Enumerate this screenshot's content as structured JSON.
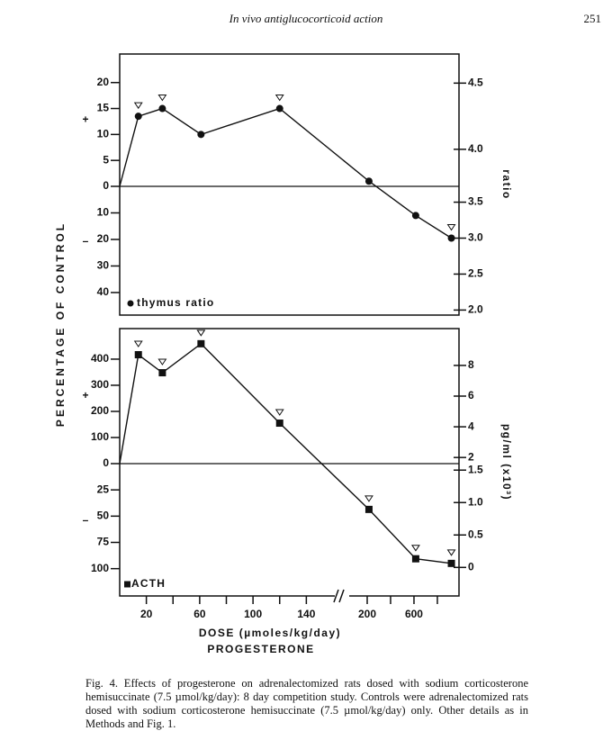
{
  "header": {
    "title": "In vivo antiglucocorticoid action",
    "page": "251"
  },
  "y_label": "PERCENTAGE OF CONTROL",
  "chart_data": [
    {
      "type": "line",
      "positive_label": "+",
      "negative_label": "–",
      "y2label": "ratio",
      "x": [
        0,
        14,
        32,
        61,
        120,
        215,
        615,
        920
      ],
      "xlim": [
        0,
        985
      ],
      "axis_break": [
        160,
        200
      ],
      "ylim": [
        -48.5,
        25.5
      ],
      "yticks": [
        20,
        15,
        10,
        5,
        0,
        {
          "value": -10,
          "label": "10"
        },
        {
          "value": -20,
          "label": "20"
        },
        {
          "value": -30,
          "label": "30"
        },
        {
          "value": -40,
          "label": "40"
        }
      ],
      "y2lim": [
        1.93,
        4.72
      ],
      "y2_break": 3.72,
      "y2ticks": [
        4.5,
        {
          "value": 4,
          "label": "4.0"
        },
        3.5,
        {
          "value": 3,
          "label": "3.0"
        },
        2.5,
        {
          "value": 2,
          "label": "2.0"
        }
      ],
      "series": [
        {
          "name": "thymus ratio",
          "marker": "circle",
          "color": "#111111",
          "values": [
            0,
            13.5,
            15,
            10,
            15,
            1,
            -11,
            -19.5
          ],
          "significant": [
            false,
            true,
            true,
            false,
            true,
            false,
            false,
            true
          ]
        }
      ]
    },
    {
      "type": "line",
      "positive_label": "+",
      "negative_label": "–",
      "y2label": "pg/ml (x10³)",
      "x": [
        0,
        14,
        32,
        61,
        120,
        215,
        615,
        920
      ],
      "xlim": [
        0,
        985
      ],
      "axis_break": [
        160,
        200
      ],
      "xticks": [
        20,
        60,
        100,
        140,
        200,
        600
      ],
      "xminor": [
        40,
        80,
        120,
        400,
        800
      ],
      "xlabel": "DOSE (µmoles/kg/day)",
      "xsublabel": "PROGESTERONE",
      "ylim": [
        -126,
        517
      ],
      "yticks": [
        400,
        300,
        200,
        100,
        0,
        {
          "value": -25,
          "label": "25"
        },
        {
          "value": -50,
          "label": "50"
        },
        {
          "value": -75,
          "label": "75"
        },
        {
          "value": -100,
          "label": "100"
        }
      ],
      "y2lim": [
        -0.44,
        10.4
      ],
      "y2_break": 1.6,
      "y2ticks": [
        8,
        6,
        4,
        2,
        1.5,
        {
          "value": 1,
          "label": "1.0"
        },
        0.5,
        0
      ],
      "series": [
        {
          "name": "ACTH",
          "marker": "square",
          "color": "#111111",
          "values": [
            0,
            417,
            348,
            459,
            155,
            -43.6,
            -90.6,
            -95
          ],
          "significant": [
            false,
            true,
            true,
            true,
            true,
            true,
            true,
            true
          ]
        }
      ]
    }
  ],
  "caption": "Fig. 4. Effects of progesterone on adrenalectomized rats dosed with sodium corticosterone hemisuccinate (7.5 µmol/kg/day): 8 day competition study. Controls were adrenalectomized rats dosed with sodium corticosterone hemisuccinate (7.5 µmol/kg/day) only. Other details as in Methods and Fig. 1."
}
